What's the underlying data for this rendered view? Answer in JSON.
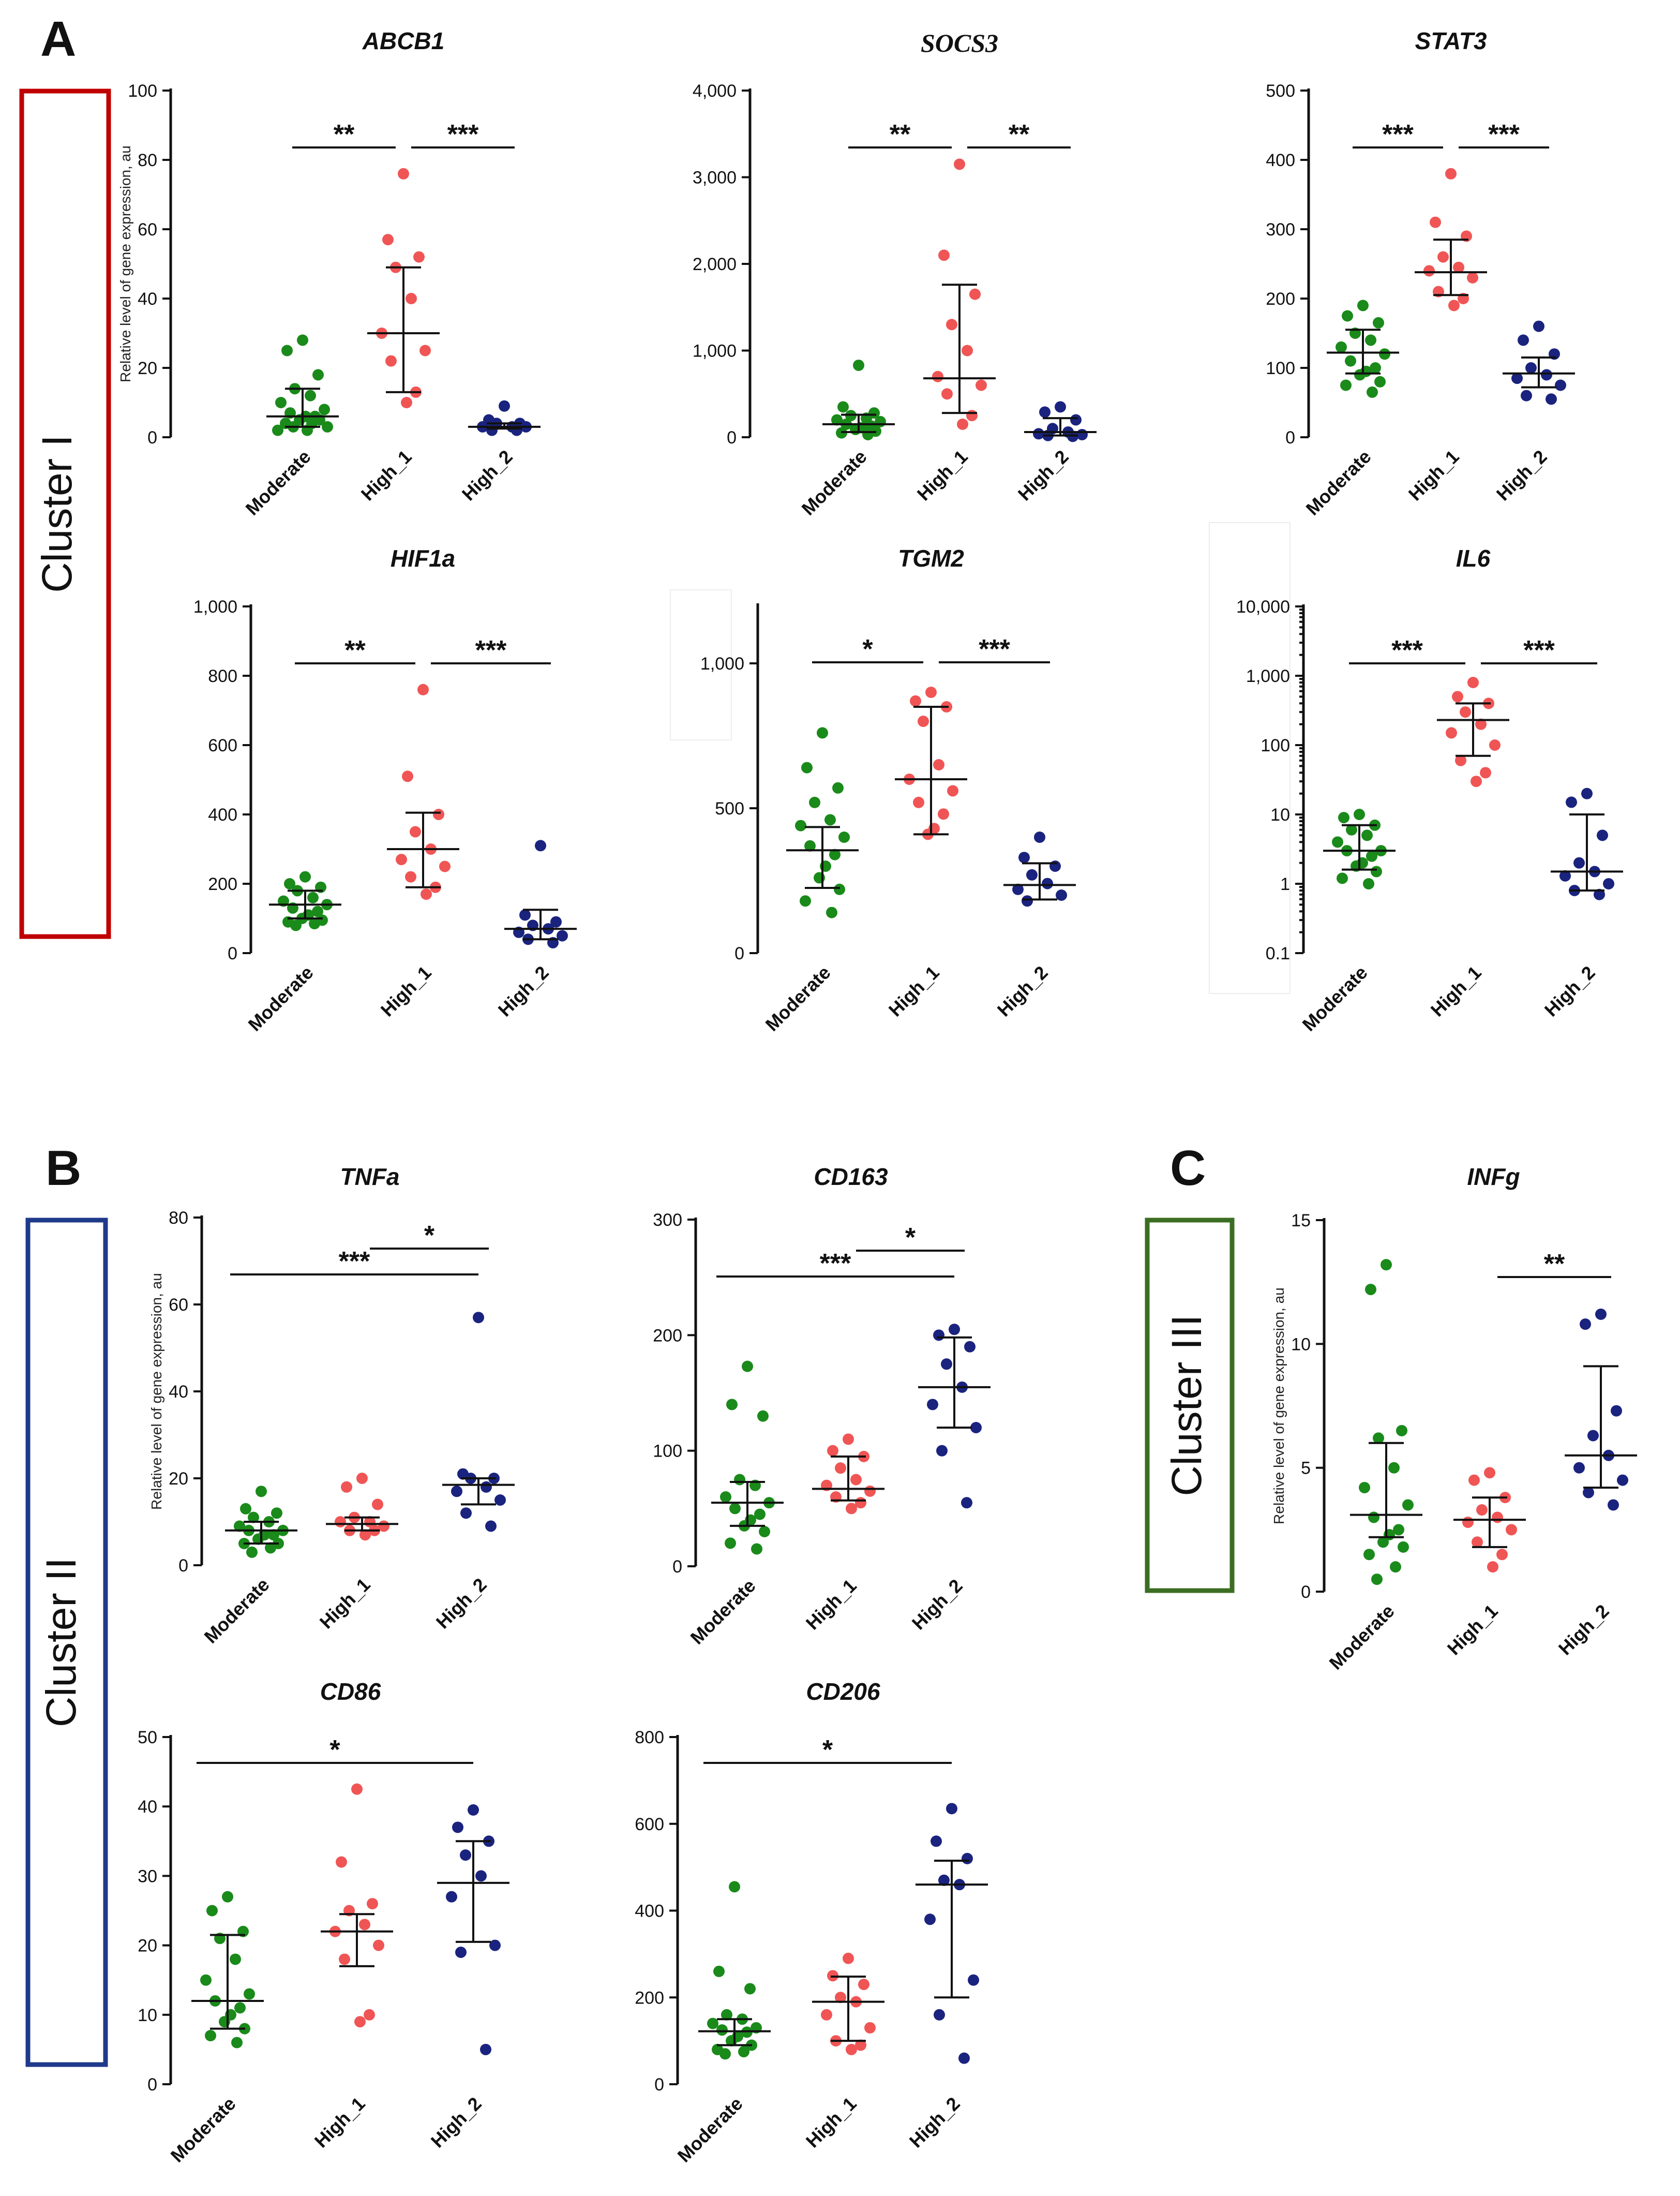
{
  "panels": {
    "A": "A",
    "B": "B",
    "C": "C"
  },
  "clusters": {
    "I": {
      "label": "Cluster I",
      "color": "#c00000"
    },
    "II": {
      "label": "Cluster II",
      "color": "#1f3a8a"
    },
    "III": {
      "label": "Cluster III",
      "color": "#3b6e22"
    }
  },
  "colors": {
    "Moderate": "#1a8a1a",
    "High_1": "#f05555",
    "High_2": "#1a237e"
  },
  "chart_data": [
    {
      "id": "ABCB1",
      "type": "scatter",
      "title": "ABCB1",
      "categories": [
        "Moderate",
        "High_1",
        "High_2"
      ],
      "ylabel": "Relative level of gene expression, au",
      "ylim": [
        0,
        100
      ],
      "scale": "linear",
      "yticks": [
        0,
        20,
        40,
        60,
        80,
        100
      ],
      "ytick_labels": [
        "0",
        "20",
        "40",
        "60",
        "80",
        "100"
      ],
      "series": [
        {
          "name": "Moderate",
          "values": [
            28,
            25,
            18,
            14,
            12,
            10,
            8,
            7,
            6,
            6,
            5,
            5,
            4,
            4,
            3,
            3,
            2,
            2
          ],
          "median": 6,
          "q1": 3,
          "q3": 14
        },
        {
          "name": "High_1",
          "values": [
            76,
            57,
            52,
            49,
            40,
            30,
            25,
            22,
            13,
            10
          ],
          "median": 30,
          "q1": 13,
          "q3": 49
        },
        {
          "name": "High_2",
          "values": [
            9,
            5,
            4,
            4,
            3,
            3,
            3,
            2,
            2
          ],
          "median": 3,
          "q1": 2.5,
          "q3": 4
        }
      ],
      "significance": [
        {
          "from": "Moderate",
          "to": "High_1",
          "label": "**"
        },
        {
          "from": "High_1",
          "to": "High_2",
          "label": "***"
        }
      ]
    },
    {
      "id": "SOCS3",
      "type": "scatter",
      "title": "SOCS3",
      "categories": [
        "Moderate",
        "High_1",
        "High_2"
      ],
      "ylabel": "",
      "ylim": [
        0,
        4000
      ],
      "scale": "linear",
      "yticks": [
        0,
        1000,
        2000,
        3000,
        4000
      ],
      "ytick_labels": [
        "0",
        "1,000",
        "2,000",
        "3,000",
        "4,000"
      ],
      "series": [
        {
          "name": "Moderate",
          "values": [
            830,
            350,
            280,
            250,
            220,
            200,
            180,
            150,
            130,
            110,
            90,
            70,
            50,
            30
          ],
          "median": 150,
          "q1": 60,
          "q3": 260
        },
        {
          "name": "High_1",
          "values": [
            3150,
            2100,
            1650,
            1300,
            1000,
            700,
            600,
            500,
            250,
            150
          ],
          "median": 680,
          "q1": 280,
          "q3": 1760
        },
        {
          "name": "High_2",
          "values": [
            350,
            290,
            200,
            100,
            60,
            40,
            30,
            20,
            10
          ],
          "median": 60,
          "q1": 20,
          "q3": 220
        }
      ],
      "significance": [
        {
          "from": "Moderate",
          "to": "High_1",
          "label": "**"
        },
        {
          "from": "High_1",
          "to": "High_2",
          "label": "**"
        }
      ]
    },
    {
      "id": "STAT3",
      "type": "scatter",
      "title": "STAT3",
      "categories": [
        "Moderate",
        "High_1",
        "High_2"
      ],
      "ylabel": "",
      "ylim": [
        0,
        500
      ],
      "scale": "linear",
      "yticks": [
        0,
        100,
        200,
        300,
        400,
        500
      ],
      "ytick_labels": [
        "0",
        "100",
        "200",
        "300",
        "400",
        "500"
      ],
      "series": [
        {
          "name": "Moderate",
          "values": [
            190,
            175,
            165,
            150,
            140,
            130,
            120,
            110,
            100,
            95,
            90,
            80,
            75,
            65
          ],
          "median": 122,
          "q1": 92,
          "q3": 155
        },
        {
          "name": "High_1",
          "values": [
            380,
            310,
            290,
            260,
            245,
            240,
            230,
            210,
            200,
            190
          ],
          "median": 238,
          "q1": 205,
          "q3": 285
        },
        {
          "name": "High_2",
          "values": [
            160,
            140,
            120,
            100,
            90,
            85,
            75,
            60,
            55
          ],
          "median": 92,
          "q1": 72,
          "q3": 115
        }
      ],
      "significance": [
        {
          "from": "Moderate",
          "to": "High_1",
          "label": "***"
        },
        {
          "from": "High_1",
          "to": "High_2",
          "label": "***"
        }
      ]
    },
    {
      "id": "HIF1a",
      "type": "scatter",
      "title": "HIF1a",
      "categories": [
        "Moderate",
        "High_1",
        "High_2"
      ],
      "ylabel": "",
      "ylim": [
        0,
        1000
      ],
      "scale": "linear",
      "yticks": [
        0,
        200,
        400,
        600,
        800,
        1000
      ],
      "ytick_labels": [
        "0",
        "200",
        "400",
        "600",
        "800",
        "1,000"
      ],
      "series": [
        {
          "name": "Moderate",
          "values": [
            220,
            200,
            190,
            180,
            160,
            150,
            140,
            130,
            120,
            110,
            100,
            95,
            90,
            85,
            80
          ],
          "median": 140,
          "q1": 100,
          "q3": 180
        },
        {
          "name": "High_1",
          "values": [
            760,
            510,
            400,
            350,
            300,
            270,
            250,
            220,
            190,
            170
          ],
          "median": 300,
          "q1": 190,
          "q3": 405
        },
        {
          "name": "High_2",
          "values": [
            310,
            110,
            90,
            80,
            70,
            60,
            50,
            40,
            30
          ],
          "median": 70,
          "q1": 40,
          "q3": 125
        }
      ],
      "significance": [
        {
          "from": "Moderate",
          "to": "High_1",
          "label": "**"
        },
        {
          "from": "High_1",
          "to": "High_2",
          "label": "***"
        }
      ]
    },
    {
      "id": "TGM2",
      "type": "scatter",
      "title": "TGM2",
      "categories": [
        "Moderate",
        "High_1",
        "High_2"
      ],
      "ylabel": "",
      "ylim": [
        0,
        1200
      ],
      "scale": "linear",
      "yticks": [
        0,
        500,
        1000
      ],
      "ytick_labels": [
        "0",
        "500",
        "1,000"
      ],
      "series": [
        {
          "name": "Moderate",
          "values": [
            760,
            640,
            570,
            520,
            460,
            440,
            400,
            370,
            340,
            300,
            260,
            220,
            180,
            140
          ],
          "median": 355,
          "q1": 225,
          "q3": 435
        },
        {
          "name": "High_1",
          "values": [
            900,
            870,
            850,
            800,
            650,
            600,
            560,
            520,
            480,
            430,
            410
          ],
          "median": 600,
          "q1": 410,
          "q3": 850
        },
        {
          "name": "High_2",
          "values": [
            400,
            330,
            300,
            270,
            240,
            220,
            200,
            180
          ],
          "median": 235,
          "q1": 185,
          "q3": 310
        }
      ],
      "significance": [
        {
          "from": "Moderate",
          "to": "High_1",
          "label": "*"
        },
        {
          "from": "High_1",
          "to": "High_2",
          "label": "***"
        }
      ]
    },
    {
      "id": "IL6",
      "type": "scatter",
      "title": "IL6",
      "categories": [
        "Moderate",
        "High_1",
        "High_2"
      ],
      "ylabel": "",
      "ylim": [
        0.1,
        10000
      ],
      "scale": "log",
      "yticks": [
        0.1,
        1,
        10,
        100,
        1000,
        10000
      ],
      "ytick_labels": [
        "0.1",
        "1",
        "10",
        "100",
        "1,000",
        "10,000"
      ],
      "series": [
        {
          "name": "Moderate",
          "values": [
            10,
            9,
            7,
            6,
            5,
            4,
            3,
            3,
            2.5,
            2,
            1.8,
            1.5,
            1.2,
            1
          ],
          "median": 3,
          "q1": 1.6,
          "q3": 7
        },
        {
          "name": "High_1",
          "values": [
            800,
            500,
            400,
            300,
            200,
            150,
            100,
            60,
            40,
            30
          ],
          "median": 230,
          "q1": 70,
          "q3": 400
        },
        {
          "name": "High_2",
          "values": [
            20,
            15,
            5,
            2,
            1.5,
            1.3,
            1,
            0.8,
            0.7
          ],
          "median": 1.5,
          "q1": 0.8,
          "q3": 10
        }
      ],
      "significance": [
        {
          "from": "Moderate",
          "to": "High_1",
          "label": "***"
        },
        {
          "from": "High_1",
          "to": "High_2",
          "label": "***"
        }
      ]
    },
    {
      "id": "TNFa",
      "type": "scatter",
      "title": "TNFa",
      "categories": [
        "Moderate",
        "High_1",
        "High_2"
      ],
      "ylabel": "Relative level of gene expression, au",
      "ylim": [
        0,
        80
      ],
      "scale": "linear",
      "yticks": [
        0,
        20,
        40,
        60,
        80
      ],
      "ytick_labels": [
        "0",
        "20",
        "40",
        "60",
        "80"
      ],
      "series": [
        {
          "name": "Moderate",
          "values": [
            17,
            13,
            12,
            11,
            10,
            9,
            8,
            8,
            7,
            7,
            6,
            5,
            5,
            4,
            3
          ],
          "median": 8,
          "q1": 5,
          "q3": 10
        },
        {
          "name": "High_1",
          "values": [
            20,
            18,
            14,
            11,
            10,
            10,
            9,
            8,
            8,
            7
          ],
          "median": 9.5,
          "q1": 8,
          "q3": 11
        },
        {
          "name": "High_2",
          "values": [
            57,
            21,
            20,
            20,
            18,
            17,
            15,
            12,
            9
          ],
          "median": 18.5,
          "q1": 14,
          "q3": 20
        }
      ],
      "significance": [
        {
          "from": "High_1",
          "to": "High_2",
          "label": "*"
        },
        {
          "from": "Moderate",
          "to": "High_2",
          "label": "***"
        }
      ]
    },
    {
      "id": "CD163",
      "type": "scatter",
      "title": "CD163",
      "categories": [
        "Moderate",
        "High_1",
        "High_2"
      ],
      "ylabel": "",
      "ylim": [
        0,
        300
      ],
      "scale": "linear",
      "yticks": [
        0,
        100,
        200,
        300
      ],
      "ytick_labels": [
        "0",
        "100",
        "200",
        "300"
      ],
      "series": [
        {
          "name": "Moderate",
          "values": [
            173,
            140,
            130,
            75,
            70,
            60,
            55,
            50,
            45,
            40,
            35,
            30,
            20,
            15
          ],
          "median": 55,
          "q1": 35,
          "q3": 73
        },
        {
          "name": "High_1",
          "values": [
            110,
            100,
            95,
            85,
            75,
            70,
            65,
            60,
            55,
            50
          ],
          "median": 67,
          "q1": 57,
          "q3": 95
        },
        {
          "name": "High_2",
          "values": [
            205,
            200,
            190,
            175,
            155,
            140,
            120,
            100,
            55
          ],
          "median": 155,
          "q1": 120,
          "q3": 198
        }
      ],
      "significance": [
        {
          "from": "High_1",
          "to": "High_2",
          "label": "*"
        },
        {
          "from": "Moderate",
          "to": "High_2",
          "label": "***"
        }
      ]
    },
    {
      "id": "INFg",
      "type": "scatter",
      "title": "INFg",
      "categories": [
        "Moderate",
        "High_1",
        "High_2"
      ],
      "ylabel": "Relative level of gene expression, au",
      "ylim": [
        0,
        15
      ],
      "scale": "linear",
      "yticks": [
        0,
        5,
        10,
        15
      ],
      "ytick_labels": [
        "0",
        "5",
        "10",
        "15"
      ],
      "series": [
        {
          "name": "Moderate",
          "values": [
            13.2,
            12.2,
            6.5,
            6.2,
            5.0,
            4.2,
            3.5,
            3.0,
            2.5,
            2.3,
            2.0,
            1.8,
            1.5,
            1.0,
            0.5
          ],
          "median": 3.1,
          "q1": 2.2,
          "q3": 6.0
        },
        {
          "name": "High_1",
          "values": [
            4.8,
            4.5,
            3.8,
            3.3,
            3.0,
            2.8,
            2.5,
            2.0,
            1.5,
            1.0
          ],
          "median": 2.9,
          "q1": 1.8,
          "q3": 3.8
        },
        {
          "name": "High_2",
          "values": [
            11.2,
            10.8,
            7.3,
            6.3,
            5.5,
            5.0,
            4.5,
            4.0,
            3.5
          ],
          "median": 5.5,
          "q1": 4.2,
          "q3": 9.1
        }
      ],
      "significance": [
        {
          "from": "High_1",
          "to": "High_2",
          "label": "**"
        }
      ]
    },
    {
      "id": "CD86",
      "type": "scatter",
      "title": "CD86",
      "categories": [
        "Moderate",
        "High_1",
        "High_2"
      ],
      "ylabel": "",
      "ylim": [
        0,
        50
      ],
      "scale": "linear",
      "yticks": [
        0,
        10,
        20,
        30,
        40,
        50
      ],
      "ytick_labels": [
        "0",
        "10",
        "20",
        "30",
        "40",
        "50"
      ],
      "series": [
        {
          "name": "Moderate",
          "values": [
            27,
            25,
            22,
            21,
            18,
            15,
            13,
            12,
            11,
            10,
            9,
            8,
            7,
            6
          ],
          "median": 12,
          "q1": 8,
          "q3": 21.5
        },
        {
          "name": "High_1",
          "values": [
            42.5,
            32,
            26,
            25,
            23,
            22,
            20,
            18,
            10,
            9
          ],
          "median": 22,
          "q1": 17,
          "q3": 24.5
        },
        {
          "name": "High_2",
          "values": [
            39.5,
            37,
            35,
            33,
            30,
            27,
            20,
            19,
            5
          ],
          "median": 29,
          "q1": 20.5,
          "q3": 35
        }
      ],
      "significance": [
        {
          "from": "Moderate",
          "to": "High_2",
          "label": "*"
        }
      ]
    },
    {
      "id": "CD206",
      "type": "scatter",
      "title": "CD206",
      "categories": [
        "Moderate",
        "High_1",
        "High_2"
      ],
      "ylabel": "",
      "ylim": [
        0,
        800
      ],
      "scale": "linear",
      "yticks": [
        0,
        200,
        400,
        600,
        800
      ],
      "ytick_labels": [
        "0",
        "200",
        "400",
        "600",
        "800"
      ],
      "series": [
        {
          "name": "Moderate",
          "values": [
            455,
            260,
            220,
            160,
            150,
            140,
            130,
            125,
            120,
            110,
            100,
            90,
            80,
            75,
            70
          ],
          "median": 122,
          "q1": 90,
          "q3": 150
        },
        {
          "name": "High_1",
          "values": [
            290,
            250,
            230,
            200,
            190,
            160,
            130,
            100,
            90,
            80
          ],
          "median": 190,
          "q1": 100,
          "q3": 248
        },
        {
          "name": "High_2",
          "values": [
            635,
            560,
            520,
            470,
            460,
            380,
            240,
            160,
            60
          ],
          "median": 460,
          "q1": 200,
          "q3": 515
        }
      ],
      "significance": [
        {
          "from": "Moderate",
          "to": "High_2",
          "label": "*"
        }
      ]
    }
  ]
}
